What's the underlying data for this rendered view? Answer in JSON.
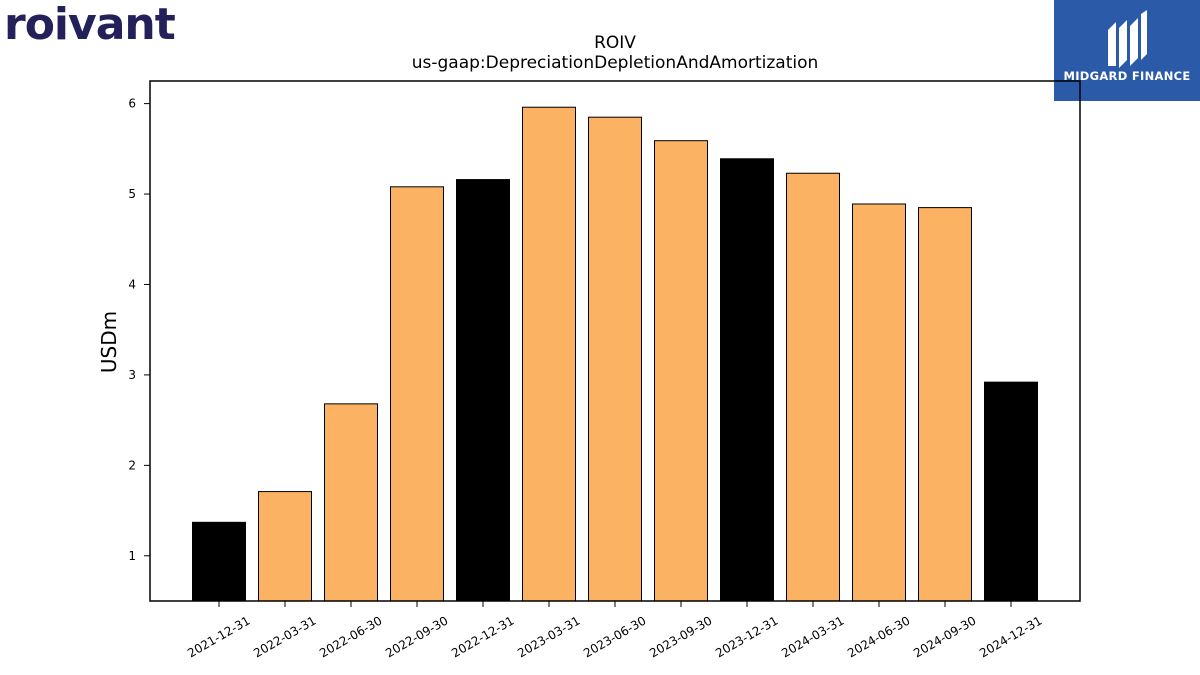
{
  "header": {
    "company_logo_text": "roivant",
    "brand_logo_text": "MIDGARD FINANCE"
  },
  "colors": {
    "annual_bar": "#000000",
    "quarter_bar": "#fbb263",
    "brand_blue": "#2b5aa8",
    "roivant_navy": "#24215a"
  },
  "chart_data": {
    "type": "bar",
    "title": "ROIV",
    "subtitle": "us-gaap:DepreciationDepletionAndAmortization",
    "xlabel": "",
    "ylabel": "USDm",
    "ylim": [
      0.5,
      6.25
    ],
    "yticks": [
      1,
      2,
      3,
      4,
      5,
      6
    ],
    "grid": false,
    "categories": [
      "2021-12-31",
      "2022-03-31",
      "2022-06-30",
      "2022-09-30",
      "2022-12-31",
      "2023-03-31",
      "2023-06-30",
      "2023-09-30",
      "2023-12-31",
      "2024-03-31",
      "2024-06-30",
      "2024-09-30",
      "2024-12-31"
    ],
    "values": [
      1.37,
      1.71,
      2.68,
      5.08,
      5.16,
      5.96,
      5.85,
      5.59,
      5.39,
      5.23,
      4.89,
      4.85,
      2.92
    ],
    "bar_colors": [
      "#000000",
      "#fbb263",
      "#fbb263",
      "#fbb263",
      "#000000",
      "#fbb263",
      "#fbb263",
      "#fbb263",
      "#000000",
      "#fbb263",
      "#fbb263",
      "#fbb263",
      "#000000"
    ]
  }
}
